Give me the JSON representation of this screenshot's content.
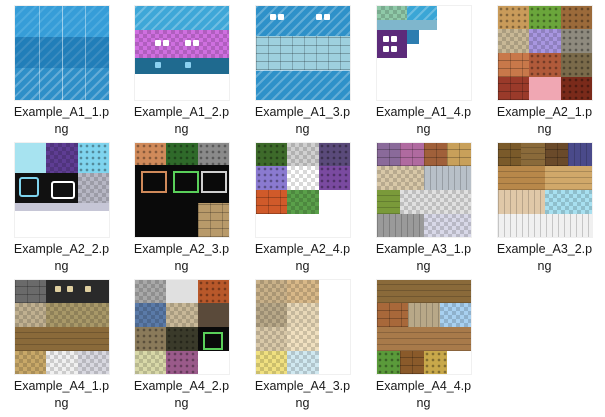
{
  "files": [
    {
      "name": "Example_A1_1.png",
      "line1": "Example_A1_1.p",
      "line2": "ng"
    },
    {
      "name": "Example_A1_2.png",
      "line1": "Example_A1_2.p",
      "line2": "ng"
    },
    {
      "name": "Example_A1_3.png",
      "line1": "Example_A1_3.p",
      "line2": "ng"
    },
    {
      "name": "Example_A1_4.png",
      "line1": "Example_A1_4.p",
      "line2": "ng"
    },
    {
      "name": "Example_A2_1.png",
      "line1": "Example_A2_1.p",
      "line2": "ng"
    },
    {
      "name": "Example_A2_2.png",
      "line1": "Example_A2_2.p",
      "line2": "ng"
    },
    {
      "name": "Example_A2_3.png",
      "line1": "Example_A2_3.p",
      "line2": "ng"
    },
    {
      "name": "Example_A2_4.png",
      "line1": "Example_A2_4.p",
      "line2": "ng"
    },
    {
      "name": "Example_A3_1.png",
      "line1": "Example_A3_1.p",
      "line2": "ng"
    },
    {
      "name": "Example_A3_2.png",
      "line1": "Example_A3_2.p",
      "line2": "ng"
    },
    {
      "name": "Example_A4_1.png",
      "line1": "Example_A4_1.p",
      "line2": "ng"
    },
    {
      "name": "Example_A4_2.png",
      "line1": "Example_A4_2.p",
      "line2": "ng"
    },
    {
      "name": "Example_A4_3.png",
      "line1": "Example_A4_3.p",
      "line2": "ng"
    },
    {
      "name": "Example_A4_4.png",
      "line1": "Example_A4_4.p",
      "line2": "ng"
    }
  ]
}
